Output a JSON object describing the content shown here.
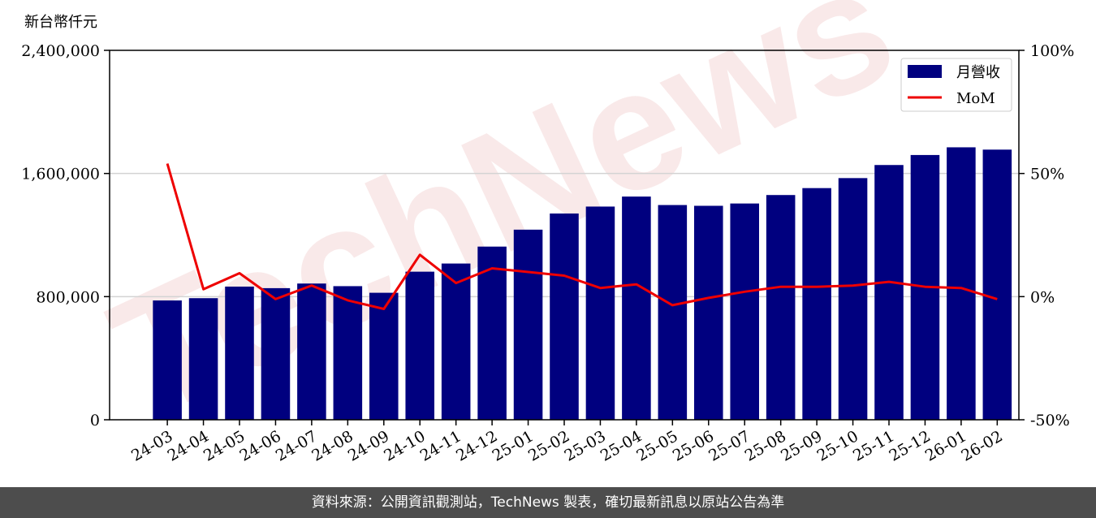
{
  "unit_label": "新台幣仟元",
  "watermark_text": "TechNews",
  "footer_text": "資料來源：公開資訊觀測站，TechNews 製表，確切最新訊息以原站公告為準",
  "colors": {
    "bar": "#00007f",
    "line": "#ee0000",
    "grid": "#d3d3d3",
    "watermark": "#f2d0d0",
    "footer_bg": "#4d4d4d"
  },
  "chart_data": {
    "type": "bar",
    "categories": [
      "24-03",
      "24-04",
      "24-05",
      "24-06",
      "24-07",
      "24-08",
      "24-09",
      "24-10",
      "24-11",
      "24-12",
      "25-01",
      "25-02",
      "25-03",
      "25-04",
      "25-05",
      "25-06",
      "25-07",
      "25-08",
      "25-09",
      "25-10",
      "25-11",
      "25-12",
      "26-01",
      "26-02"
    ],
    "series": [
      {
        "name": "月營收",
        "type": "bar",
        "axis": "left",
        "values": [
          775000,
          790000,
          865000,
          855000,
          885000,
          868000,
          825000,
          962000,
          1015000,
          1125000,
          1235000,
          1340000,
          1385000,
          1450000,
          1395000,
          1390000,
          1405000,
          1460000,
          1505000,
          1570000,
          1655000,
          1720000,
          1770000,
          1755000
        ]
      },
      {
        "name": "MoM",
        "type": "line",
        "axis": "right",
        "values": [
          54.0,
          3.0,
          9.5,
          -1.0,
          4.5,
          -1.5,
          -5.0,
          17.0,
          5.5,
          11.5,
          10.0,
          8.5,
          3.5,
          5.0,
          -3.5,
          -0.5,
          2.0,
          4.0,
          4.0,
          4.5,
          6.0,
          4.0,
          3.5,
          -1.0
        ]
      }
    ],
    "y_left": {
      "min": 0,
      "max": 2400000,
      "ticks": [
        "0",
        "800,000",
        "1,600,000",
        "2,400,000"
      ],
      "tick_values": [
        0,
        800000,
        1600000,
        2400000
      ]
    },
    "y_right": {
      "min": -50,
      "max": 100,
      "ticks": [
        "-50%",
        "0%",
        "50%",
        "100%"
      ],
      "tick_values": [
        -50,
        0,
        50,
        100
      ]
    },
    "grid": true,
    "legend_position": "top-right"
  }
}
